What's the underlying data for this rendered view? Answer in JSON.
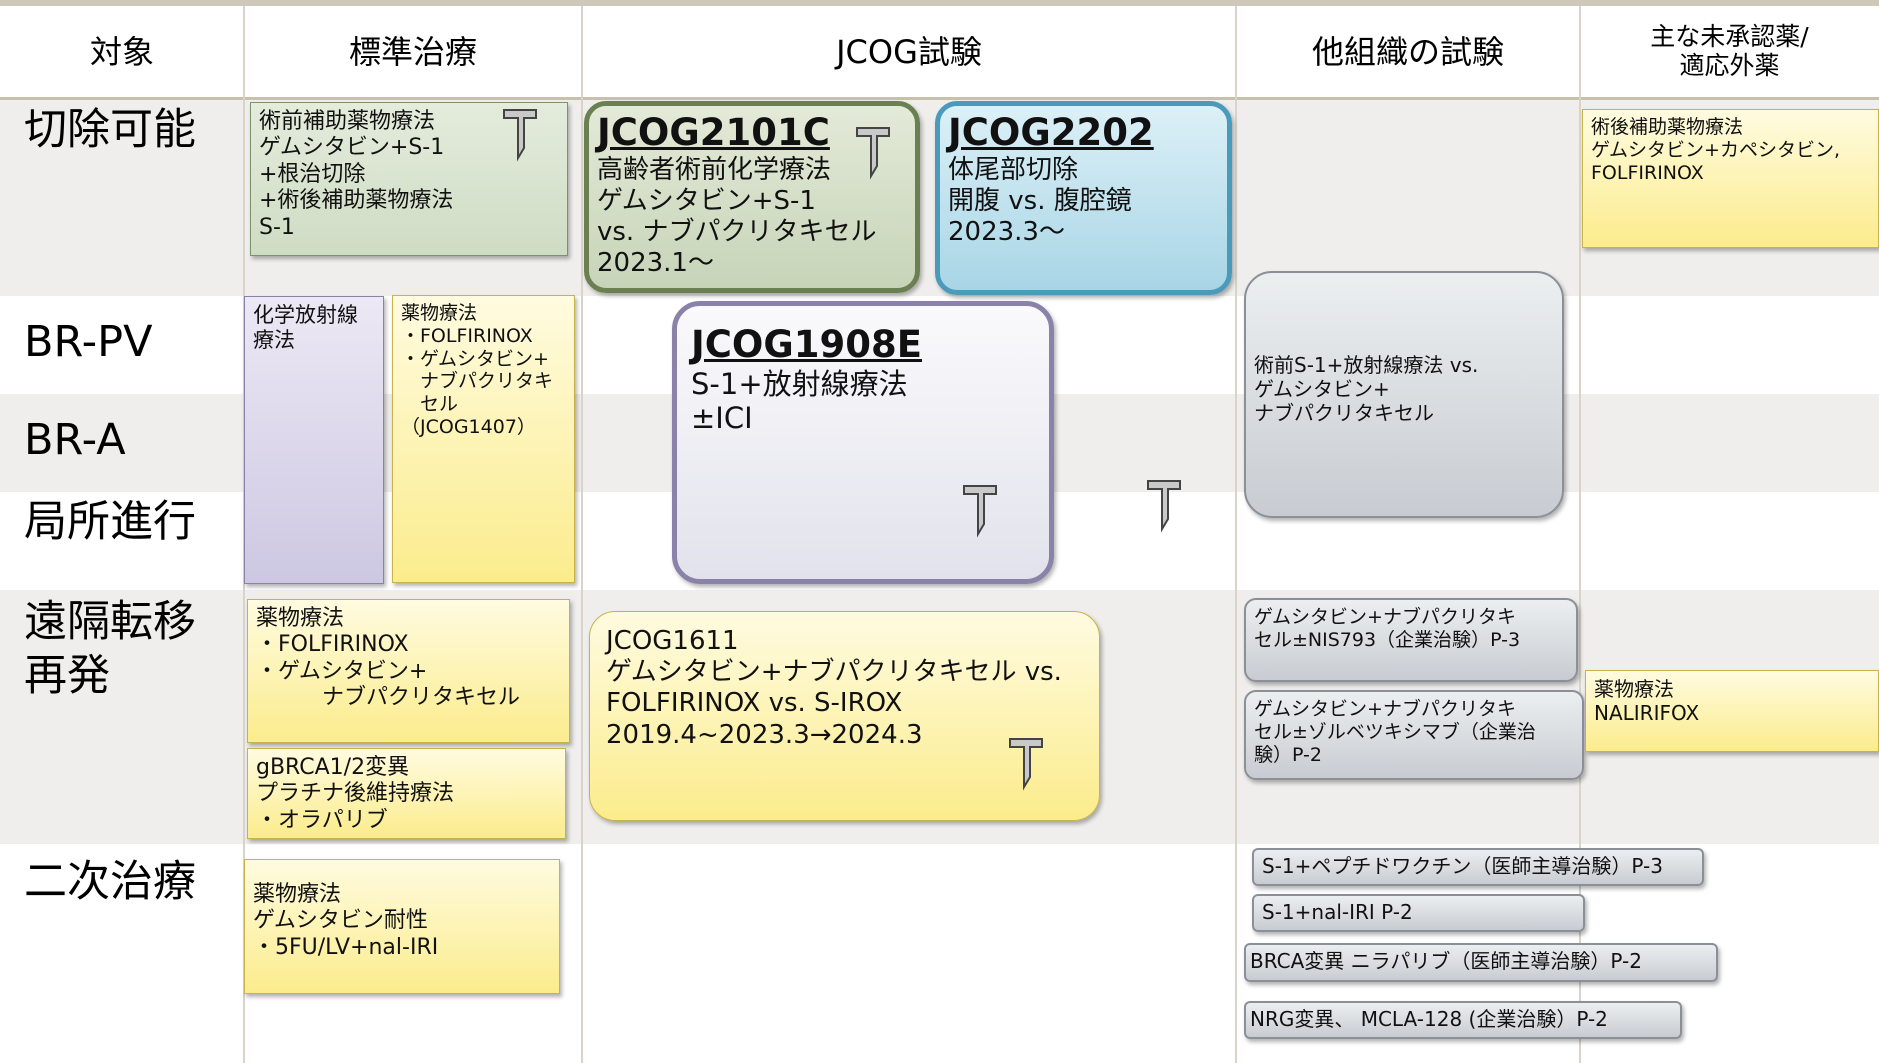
{
  "header": {
    "cells": [
      [
        "対象"
      ],
      [
        "標準治療"
      ],
      [
        "JCOG試験"
      ],
      [
        "他組織の試験"
      ],
      [
        "主な未承認薬/",
        "適応外薬"
      ]
    ]
  },
  "rows": [
    [
      "切除可能"
    ],
    [
      "BR-PV"
    ],
    [
      "BR-A"
    ],
    [
      "局所進行"
    ],
    [
      "遠隔転移",
      "再発"
    ],
    [
      "二次治療"
    ]
  ],
  "boxes": [
    {
      "lines": [
        "術前補助薬物療法",
        "ゲムシタビン+S-1",
        "+根治切除",
        "+術後補助薬物療法",
        "S-1"
      ]
    },
    {
      "title": "JCOG2101C",
      "lines": [
        "高齢者術前化学療法",
        "ゲムシタビン+S-1",
        " vs. ナブパクリタキセル",
        "2023.1〜"
      ]
    },
    {
      "title": "JCOG2202",
      "lines": [
        "体尾部切除",
        "開腹 vs. 腹腔鏡",
        "2023.3〜"
      ]
    },
    {
      "lines": [
        "術後補助薬物療法",
        "ゲムシタビン+カペシタビン,",
        "FOLFIRINOX"
      ]
    },
    {
      "lines": [
        "化学放射線",
        "療法"
      ]
    },
    {
      "lines": [
        "薬物療法",
        "・FOLFIRINOX",
        "・ゲムシタビン+",
        "　ナブパクリタキ",
        "　セル",
        "（JCOG1407）"
      ]
    },
    {
      "title": "JCOG1908E",
      "lines": [
        "S-1+放射線療法",
        "±ICI"
      ]
    },
    {
      "lines": [
        "術前S-1+放射線療法 vs.",
        "ゲムシタビン+",
        "ナブパクリタキセル"
      ]
    },
    {
      "lines": [
        "薬物療法",
        "・FOLFIRINOX",
        "・ゲムシタビン+",
        "　　　ナブパクリタキセル"
      ]
    },
    {
      "lines": [
        "gBRCA1/2変異",
        "プラチナ後維持療法",
        "・オラパリブ"
      ]
    },
    {
      "lines": [
        "JCOG1611",
        "ゲムシタビン+ナブパクリタキセル vs.",
        "FOLFIRINOX vs. S-IROX",
        "2019.4~2023.3→2024.3"
      ]
    },
    {
      "lines": [
        "ゲムシタビン+ナブパクリタキ",
        "セル±NIS793（企業治験）P-3"
      ]
    },
    {
      "lines": [
        "ゲムシタビン+ナブパクリタキ",
        "セル±ゾルベツキシマブ（企業治",
        "験）P-2"
      ]
    },
    {
      "lines": [
        "薬物療法",
        "NALIRIFOX"
      ]
    },
    {
      "lines": [
        "薬物療法",
        "ゲムシタビン耐性",
        "・5FU/LV+nal-IRI"
      ]
    },
    {
      "lines": [
        "S-1+ペプチドワクチン（医師主導治験）P-3"
      ]
    },
    {
      "lines": [
        "S-1+nal-IRI P-2"
      ]
    },
    {
      "lines": [
        "BRCA変異 ニラパリブ（医師主導治験）P-2"
      ]
    },
    {
      "lines": [
        "NRG変異、 MCLA-128 (企業治験）P-2"
      ]
    }
  ]
}
